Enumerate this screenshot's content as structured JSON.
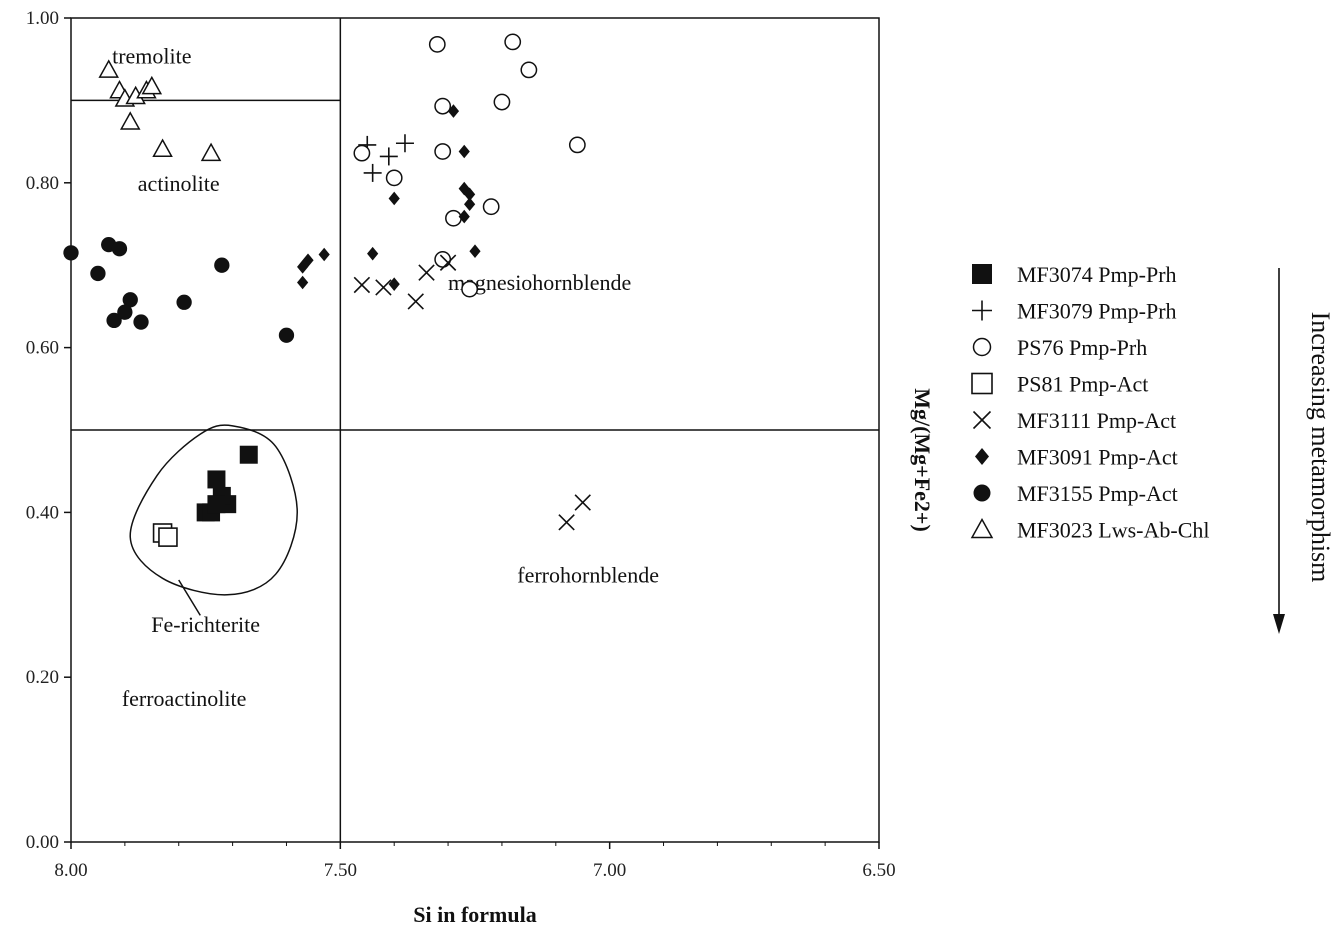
{
  "chart_data": {
    "type": "scatter",
    "xlabel": "Si in formula",
    "ylabel": "Mg/(Mg+Fe2+)",
    "xlim": [
      8.0,
      6.5
    ],
    "ylim": [
      0.0,
      1.0
    ],
    "x_reversed": true,
    "x_ticks": [
      "8.00",
      "7.50",
      "7.00",
      "6.50"
    ],
    "y_ticks": [
      "0.00",
      "0.20",
      "0.40",
      "0.60",
      "0.80",
      "1.00"
    ],
    "grid": false,
    "legend_position": "right",
    "field_boundaries": {
      "si_divider": 7.5,
      "mg_divider": 0.5,
      "tremolite_actinolite_divider": 0.9
    },
    "fields": [
      {
        "name": "tremolite",
        "x": 7.85,
        "y": 0.945
      },
      {
        "name": "actinolite",
        "x": 7.8,
        "y": 0.79
      },
      {
        "name": "magnesiohornblende",
        "x": 7.13,
        "y": 0.67
      },
      {
        "name": "ferrohornblende",
        "x": 7.04,
        "y": 0.315
      },
      {
        "name": "ferroactinolite",
        "x": 7.79,
        "y": 0.165
      },
      {
        "name": "Fe-richterite",
        "x": 7.75,
        "y": 0.255
      }
    ],
    "side_label": "Increasing metamorphism",
    "series": [
      {
        "name": "MF3074 Pmp-Prh",
        "marker": "filled-square",
        "x": [
          7.67,
          7.71,
          7.72,
          7.73,
          7.75,
          7.74,
          7.73
        ],
        "y": [
          0.47,
          0.41,
          0.42,
          0.44,
          0.4,
          0.4,
          0.41
        ]
      },
      {
        "name": "MF3079 Pmp-Prh",
        "marker": "plus",
        "x": [
          7.45,
          7.38,
          7.41,
          7.44
        ],
        "y": [
          0.846,
          0.848,
          0.832,
          0.812
        ]
      },
      {
        "name": "PS76 Pmp-Prh",
        "marker": "open-circle",
        "x": [
          7.32,
          7.18,
          7.15,
          7.31,
          7.2,
          7.06,
          7.46,
          7.31,
          7.4,
          7.22,
          7.29,
          7.31,
          7.26
        ],
        "y": [
          0.968,
          0.971,
          0.937,
          0.893,
          0.898,
          0.846,
          0.836,
          0.838,
          0.806,
          0.771,
          0.757,
          0.707,
          0.671
        ],
        "count_note": ""
      },
      {
        "name": "PS81 Pmp-Act",
        "marker": "open-square",
        "x": [
          7.83,
          7.82
        ],
        "y": [
          0.375,
          0.37
        ]
      },
      {
        "name": "MF3111 Pmp-Act",
        "marker": "cross",
        "x": [
          7.46,
          7.42,
          7.36,
          7.34,
          7.3,
          7.08,
          7.05
        ],
        "y": [
          0.676,
          0.673,
          0.656,
          0.691,
          0.703,
          0.388,
          0.412
        ]
      },
      {
        "name": "MF3091 Pmp-Act",
        "marker": "filled-diamond",
        "x": [
          7.29,
          7.27,
          7.27,
          7.26,
          7.26,
          7.27,
          7.25,
          7.4,
          7.44,
          7.53,
          7.56,
          7.57,
          7.57,
          7.4
        ],
        "y": [
          0.887,
          0.838,
          0.793,
          0.786,
          0.774,
          0.759,
          0.717,
          0.781,
          0.714,
          0.713,
          0.706,
          0.698,
          0.679,
          0.677
        ]
      },
      {
        "name": "MF3155 Pmp-Act",
        "marker": "filled-circle",
        "x": [
          8.0,
          7.93,
          7.91,
          7.95,
          7.89,
          7.92,
          7.9,
          7.87,
          7.72,
          7.79,
          7.6
        ],
        "y": [
          0.715,
          0.725,
          0.72,
          0.69,
          0.658,
          0.633,
          0.643,
          0.631,
          0.7,
          0.655,
          0.615
        ]
      },
      {
        "name": "MF3023 Lws-Ab-Chl",
        "marker": "open-triangle",
        "x": [
          7.93,
          7.91,
          7.9,
          7.88,
          7.86,
          7.85,
          7.89,
          7.83,
          7.74
        ],
        "y": [
          0.937,
          0.912,
          0.902,
          0.905,
          0.912,
          0.917,
          0.874,
          0.841,
          0.836
        ]
      }
    ]
  }
}
